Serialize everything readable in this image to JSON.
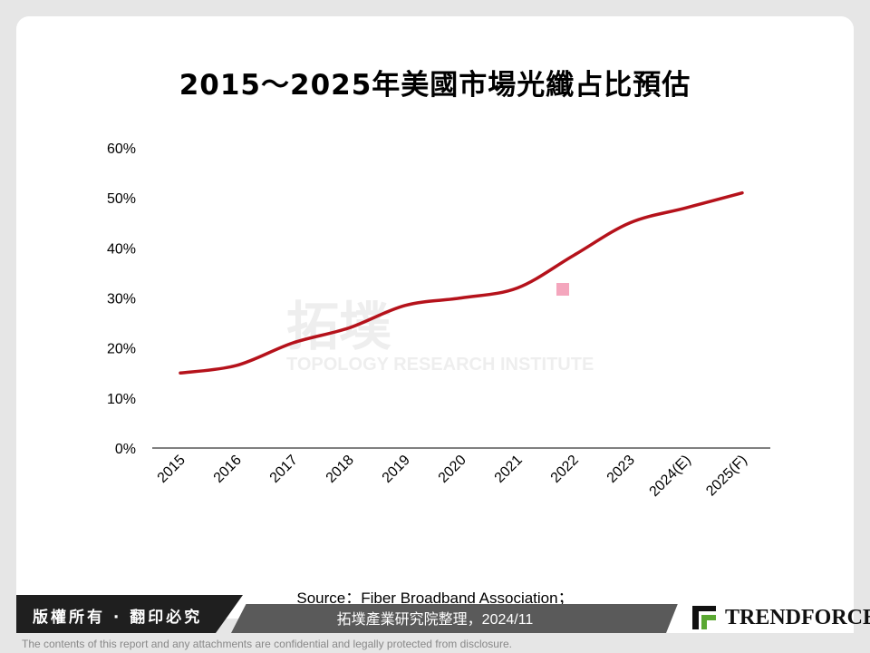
{
  "chart_data": {
    "type": "line",
    "title": "2015～2025年美國市場光纖占比預估",
    "categories": [
      "2015",
      "2016",
      "2017",
      "2018",
      "2019",
      "2020",
      "2021",
      "2022",
      "2023",
      "2024(E)",
      "2025(F)"
    ],
    "series": [
      {
        "values": [
          15,
          16.5,
          21,
          24,
          28.5,
          30,
          32,
          38.5,
          45,
          48,
          51
        ],
        "color": "#b5121b"
      }
    ],
    "ylim": [
      0,
      60
    ],
    "yticks": [
      "0%",
      "10%",
      "20%",
      "30%",
      "40%",
      "50%",
      "60%"
    ],
    "grid": false,
    "legend": "none"
  },
  "watermark": {
    "name": "拓墣",
    "subtitle": "TOPOLOGY RESEARCH INSTITUTE"
  },
  "source": {
    "line1": "Source：Fiber Broadband Association；",
    "line2": "拓墣產業研究院整理，2024/11"
  },
  "footer": {
    "copyright": "版權所有 · 翻印必究",
    "logo": "TRENDFORCE",
    "disclaimer": "The contents of this report and any attachments are confidential and legally protected from disclosure."
  },
  "colors": {
    "line": "#b5121b",
    "accent_marker": "#f4a6bd",
    "bar_dark": "#1f1f1f",
    "bar_gray": "#5a5a5a",
    "logo_green": "#5aa832"
  }
}
